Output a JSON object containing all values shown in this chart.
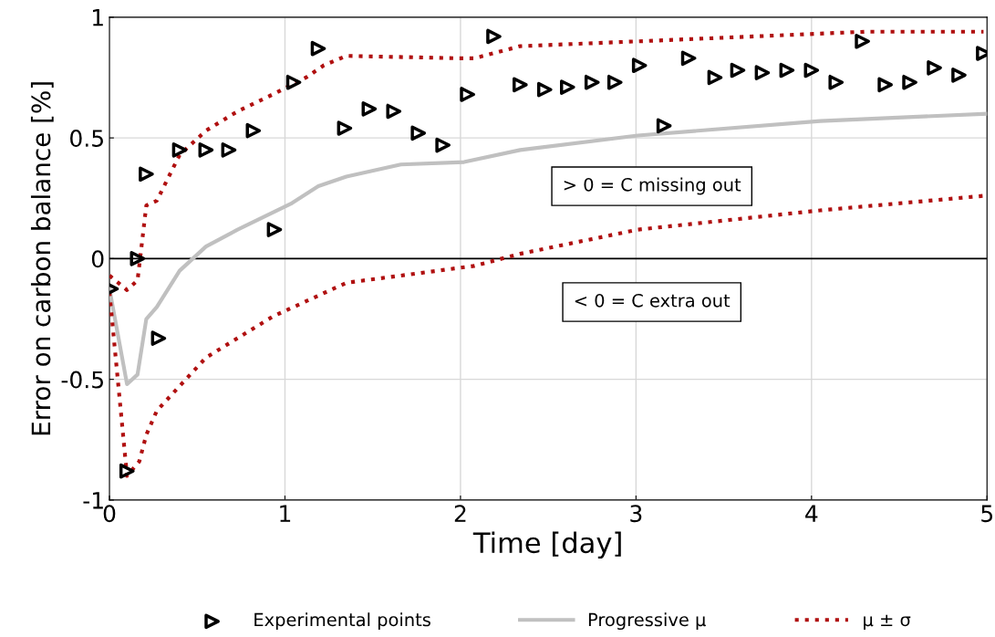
{
  "chart_data": {
    "type": "line",
    "xlabel": "Time [day]",
    "ylabel": "Error on carbon balance [%]",
    "xlim": [
      0,
      5
    ],
    "xticks": [
      0,
      1,
      2,
      3,
      4,
      5
    ],
    "ylim": [
      -1,
      1
    ],
    "yticks": [
      -1,
      -0.5,
      0,
      0.5,
      1
    ],
    "grid": true,
    "legend": "bottom",
    "annotations": [
      "> 0 = C missing out",
      "< 0 = C extra out"
    ],
    "ref_lines": [
      {
        "axis": "y",
        "value": 0,
        "color": "#000000"
      }
    ],
    "series": [
      {
        "name": "Experimental points",
        "type": "scatter",
        "marker": "triangle",
        "color": "#000000",
        "x": [
          0.01,
          0.1,
          0.16,
          0.21,
          0.28,
          0.4,
          0.55,
          0.68,
          0.82,
          0.94,
          1.05,
          1.19,
          1.34,
          1.48,
          1.62,
          1.76,
          1.9,
          2.04,
          2.19,
          2.34,
          2.48,
          2.61,
          2.75,
          2.88,
          3.02,
          3.16,
          3.3,
          3.45,
          3.58,
          3.72,
          3.86,
          4.0,
          4.14,
          4.29,
          4.42,
          4.56,
          4.7,
          4.84,
          4.98
        ],
        "values": [
          -0.125,
          -0.88,
          0.0,
          0.35,
          -0.33,
          0.45,
          0.45,
          0.45,
          0.53,
          0.12,
          0.73,
          0.87,
          0.54,
          0.62,
          0.61,
          0.52,
          0.47,
          0.68,
          0.92,
          0.72,
          0.7,
          0.71,
          0.73,
          0.73,
          0.8,
          0.55,
          0.83,
          0.75,
          0.78,
          0.77,
          0.78,
          0.78,
          0.73,
          0.9,
          0.72,
          0.73,
          0.79,
          0.76,
          0.85
        ]
      },
      {
        "name": "Progressive μ",
        "line_style": "solid",
        "color": "#c0c0c0",
        "x": [
          0,
          0.1,
          0.16,
          0.21,
          0.27,
          0.4,
          0.55,
          0.73,
          1.04,
          1.19,
          1.35,
          1.66,
          2.02,
          2.34,
          3.01,
          4.05,
          5
        ],
        "values": [
          -0.125,
          -0.52,
          -0.48,
          -0.25,
          -0.2,
          -0.05,
          0.05,
          0.12,
          0.23,
          0.3,
          0.34,
          0.39,
          0.4,
          0.45,
          0.51,
          0.57,
          0.6
        ]
      },
      {
        "name": "μ ± σ",
        "line_style": "dotted",
        "color": "#b01010",
        "x": [
          0,
          0.1,
          0.16,
          0.21,
          0.27,
          0.4,
          0.55,
          0.73,
          0.93,
          1.12,
          1.22,
          1.35,
          1.97,
          2.08,
          2.34,
          3.01,
          4.31,
          4.98
        ],
        "values": [
          -0.07,
          -0.13,
          -0.09,
          0.22,
          0.24,
          0.43,
          0.53,
          0.61,
          0.68,
          0.75,
          0.8,
          0.84,
          0.83,
          0.83,
          0.88,
          0.9,
          0.94,
          0.94
        ]
      },
      {
        "line_style": "dotted",
        "color": "#b01010",
        "x": [
          0,
          0.1,
          0.17,
          0.21,
          0.27,
          0.55,
          0.93,
          1.35,
          2.08,
          2.34,
          3.01,
          4.05,
          4.98
        ],
        "values": [
          -0.14,
          -0.9,
          -0.84,
          -0.73,
          -0.63,
          -0.41,
          -0.24,
          -0.1,
          -0.03,
          0.02,
          0.12,
          0.2,
          0.26
        ]
      }
    ]
  }
}
